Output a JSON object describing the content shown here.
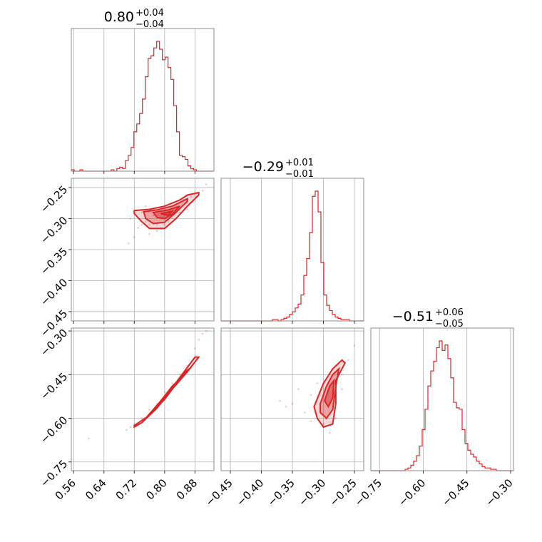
{
  "chart_data": {
    "type": "corner",
    "color": "#d62728",
    "parameters": [
      {
        "title": {
          "median": "0.80",
          "plus": "+0.04",
          "minus": "−0.04"
        },
        "range": [
          0.554,
          0.93
        ],
        "ticks": [
          0.56,
          0.64,
          0.72,
          0.8,
          0.88
        ],
        "tick_labels": [
          "0.56",
          "0.64",
          "0.72",
          "0.80",
          "0.88"
        ],
        "hist": {
          "edges_start": 0.554,
          "bin_width": 0.0075,
          "counts": [
            0.01,
            0,
            0,
            0.01,
            0,
            0,
            0,
            0,
            0,
            0,
            0,
            0,
            0,
            0,
            0.01,
            0,
            0.02,
            0.03,
            0.02,
            0.08,
            0.12,
            0.18,
            0.3,
            0.36,
            0.44,
            0.55,
            0.72,
            0.86,
            0.88,
            0.94,
            0.99,
            0.93,
            0.85,
            0.87,
            0.79,
            0.7,
            0.5,
            0.3,
            0.12,
            0.11,
            0.09,
            0.04,
            0.02,
            0.01,
            0,
            0,
            0,
            0,
            0,
            0
          ]
        }
      },
      {
        "title": {
          "median": "−0.29",
          "plus": "+0.01",
          "minus": "−0.01"
        },
        "range": [
          -0.465,
          -0.235
        ],
        "ticks": [
          -0.45,
          -0.4,
          -0.35,
          -0.3,
          -0.25
        ],
        "tick_labels": [
          "−0.45",
          "−0.40",
          "−0.35",
          "−0.30",
          "−0.25"
        ],
        "hist": {
          "edges_start": -0.465,
          "bin_width": 0.0046,
          "counts": [
            0,
            0,
            0,
            0,
            0,
            0,
            0,
            0,
            0,
            0,
            0,
            0,
            0,
            0,
            0,
            0,
            0,
            0,
            0.01,
            0.01,
            0,
            0.01,
            0.02,
            0.03,
            0.05,
            0.07,
            0.1,
            0.13,
            0.2,
            0.35,
            0.48,
            0.68,
            0.96,
            1.0,
            0.84,
            0.45,
            0.2,
            0.12,
            0.08,
            0.05,
            0.03,
            0.02,
            0.01,
            0.01,
            0.01,
            0,
            0,
            0,
            0,
            0
          ]
        }
      },
      {
        "title": {
          "median": "−0.51",
          "plus": "+0.06",
          "minus": "−0.05"
        },
        "range": [
          -0.78,
          -0.29
        ],
        "ticks": [
          -0.75,
          -0.6,
          -0.45,
          -0.3
        ],
        "tick_labels": [
          "−0.75",
          "−0.60",
          "−0.45",
          "−0.30"
        ],
        "hist": {
          "edges_start": -0.78,
          "bin_width": 0.0098,
          "counts": [
            0,
            0,
            0,
            0,
            0,
            0,
            0,
            0,
            0,
            0,
            0,
            0,
            0.01,
            0.02,
            0.04,
            0.07,
            0.11,
            0.18,
            0.3,
            0.45,
            0.62,
            0.73,
            0.8,
            0.9,
            0.95,
            0.88,
            0.92,
            0.82,
            0.68,
            0.5,
            0.46,
            0.45,
            0.3,
            0.2,
            0.15,
            0.12,
            0.1,
            0.07,
            0.05,
            0.03,
            0.02,
            0.02,
            0.01,
            0.01,
            0,
            0,
            0,
            0,
            0,
            0
          ]
        }
      }
    ],
    "pairs": [
      {
        "row": 1,
        "col": 0,
        "scatter": [
          [
            0.74,
            -0.29
          ],
          [
            0.75,
            -0.305
          ],
          [
            0.72,
            -0.33
          ],
          [
            0.705,
            -0.34
          ],
          [
            0.78,
            -0.32
          ],
          [
            0.86,
            -0.285
          ],
          [
            0.87,
            -0.265
          ],
          [
            0.9,
            -0.255
          ],
          [
            0.91,
            -0.245
          ],
          [
            0.83,
            -0.28
          ],
          [
            0.76,
            -0.31
          ],
          [
            0.79,
            -0.3
          ],
          [
            0.8,
            -0.31
          ],
          [
            0.82,
            -0.295
          ],
          [
            0.85,
            -0.27
          ],
          [
            0.77,
            -0.295
          ],
          [
            0.73,
            -0.315
          ],
          [
            0.81,
            -0.305
          ],
          [
            0.84,
            -0.29
          ],
          [
            0.88,
            -0.26
          ],
          [
            0.76,
            -0.325
          ],
          [
            0.79,
            -0.315
          ],
          [
            0.74,
            -0.31
          ],
          [
            0.71,
            -0.3
          ],
          [
            0.8,
            -0.285
          ],
          [
            0.83,
            -0.3
          ],
          [
            0.86,
            -0.275
          ],
          [
            0.78,
            -0.31
          ],
          [
            0.75,
            -0.28
          ],
          [
            0.81,
            -0.29
          ]
        ],
        "contours": [
          [
            [
              0.72,
              -0.287
            ],
            [
              0.76,
              -0.285
            ],
            [
              0.8,
              -0.28
            ],
            [
              0.84,
              -0.27
            ],
            [
              0.86,
              -0.262
            ],
            [
              0.89,
              -0.258
            ],
            [
              0.89,
              -0.262
            ],
            [
              0.86,
              -0.28
            ],
            [
              0.83,
              -0.3
            ],
            [
              0.8,
              -0.316
            ],
            [
              0.76,
              -0.316
            ],
            [
              0.74,
              -0.305
            ],
            [
              0.72,
              -0.292
            ],
            [
              0.72,
              -0.287
            ]
          ],
          [
            [
              0.745,
              -0.289
            ],
            [
              0.78,
              -0.286
            ],
            [
              0.82,
              -0.28
            ],
            [
              0.86,
              -0.268
            ],
            [
              0.86,
              -0.272
            ],
            [
              0.83,
              -0.29
            ],
            [
              0.8,
              -0.306
            ],
            [
              0.77,
              -0.308
            ],
            [
              0.75,
              -0.3
            ],
            [
              0.745,
              -0.289
            ]
          ],
          [
            [
              0.77,
              -0.29
            ],
            [
              0.81,
              -0.286
            ],
            [
              0.84,
              -0.28
            ],
            [
              0.82,
              -0.293
            ],
            [
              0.8,
              -0.3
            ],
            [
              0.78,
              -0.298
            ],
            [
              0.77,
              -0.29
            ]
          ],
          [
            [
              0.79,
              -0.292
            ],
            [
              0.82,
              -0.288
            ],
            [
              0.81,
              -0.295
            ],
            [
              0.79,
              -0.292
            ]
          ]
        ]
      },
      {
        "row": 2,
        "col": 0,
        "scatter": [
          [
            0.6,
            -0.67
          ],
          [
            0.7,
            -0.64
          ],
          [
            0.72,
            -0.62
          ],
          [
            0.74,
            -0.6
          ],
          [
            0.9,
            -0.31
          ],
          [
            0.91,
            -0.3
          ],
          [
            0.88,
            -0.36
          ],
          [
            0.86,
            -0.42
          ],
          [
            0.76,
            -0.57
          ],
          [
            0.78,
            -0.55
          ],
          [
            0.82,
            -0.48
          ],
          [
            0.84,
            -0.45
          ],
          [
            0.8,
            -0.51
          ],
          [
            0.71,
            -0.63
          ],
          [
            0.89,
            -0.33
          ]
        ],
        "contours": [
          [
            [
              0.72,
              -0.625
            ],
            [
              0.76,
              -0.59
            ],
            [
              0.8,
              -0.53
            ],
            [
              0.84,
              -0.46
            ],
            [
              0.88,
              -0.39
            ],
            [
              0.89,
              -0.39
            ],
            [
              0.86,
              -0.44
            ],
            [
              0.82,
              -0.5
            ],
            [
              0.78,
              -0.565
            ],
            [
              0.74,
              -0.615
            ],
            [
              0.72,
              -0.63
            ],
            [
              0.72,
              -0.625
            ]
          ],
          [
            [
              0.75,
              -0.6
            ],
            [
              0.8,
              -0.535
            ],
            [
              0.84,
              -0.465
            ],
            [
              0.87,
              -0.425
            ],
            [
              0.85,
              -0.445
            ],
            [
              0.81,
              -0.51
            ],
            [
              0.77,
              -0.57
            ],
            [
              0.75,
              -0.6
            ]
          ],
          [
            [
              0.78,
              -0.56
            ],
            [
              0.81,
              -0.515
            ],
            [
              0.84,
              -0.465
            ],
            [
              0.82,
              -0.49
            ],
            [
              0.79,
              -0.54
            ],
            [
              0.78,
              -0.56
            ]
          ]
        ]
      },
      {
        "row": 2,
        "col": 1,
        "scatter": [
          [
            -0.37,
            -0.54
          ],
          [
            -0.36,
            -0.56
          ],
          [
            -0.34,
            -0.5
          ],
          [
            -0.33,
            -0.58
          ],
          [
            -0.32,
            -0.52
          ],
          [
            -0.25,
            -0.35
          ],
          [
            -0.26,
            -0.4
          ],
          [
            -0.27,
            -0.45
          ],
          [
            -0.28,
            -0.6
          ],
          [
            -0.29,
            -0.65
          ],
          [
            -0.31,
            -0.48
          ],
          [
            -0.3,
            -0.62
          ],
          [
            -0.35,
            -0.55
          ],
          [
            -0.32,
            -0.61
          ],
          [
            -0.27,
            -0.5
          ]
        ],
        "contours": [
          [
            [
              -0.315,
              -0.56
            ],
            [
              -0.3,
              -0.48
            ],
            [
              -0.285,
              -0.43
            ],
            [
              -0.27,
              -0.4
            ],
            [
              -0.265,
              -0.41
            ],
            [
              -0.28,
              -0.47
            ],
            [
              -0.28,
              -0.55
            ],
            [
              -0.285,
              -0.62
            ],
            [
              -0.3,
              -0.63
            ],
            [
              -0.31,
              -0.6
            ],
            [
              -0.315,
              -0.56
            ]
          ],
          [
            [
              -0.305,
              -0.55
            ],
            [
              -0.295,
              -0.49
            ],
            [
              -0.285,
              -0.45
            ],
            [
              -0.275,
              -0.43
            ],
            [
              -0.28,
              -0.49
            ],
            [
              -0.285,
              -0.57
            ],
            [
              -0.295,
              -0.6
            ],
            [
              -0.305,
              -0.58
            ],
            [
              -0.305,
              -0.55
            ]
          ],
          [
            [
              -0.298,
              -0.54
            ],
            [
              -0.29,
              -0.49
            ],
            [
              -0.283,
              -0.47
            ],
            [
              -0.285,
              -0.53
            ],
            [
              -0.292,
              -0.56
            ],
            [
              -0.298,
              -0.54
            ]
          ]
        ]
      }
    ]
  }
}
